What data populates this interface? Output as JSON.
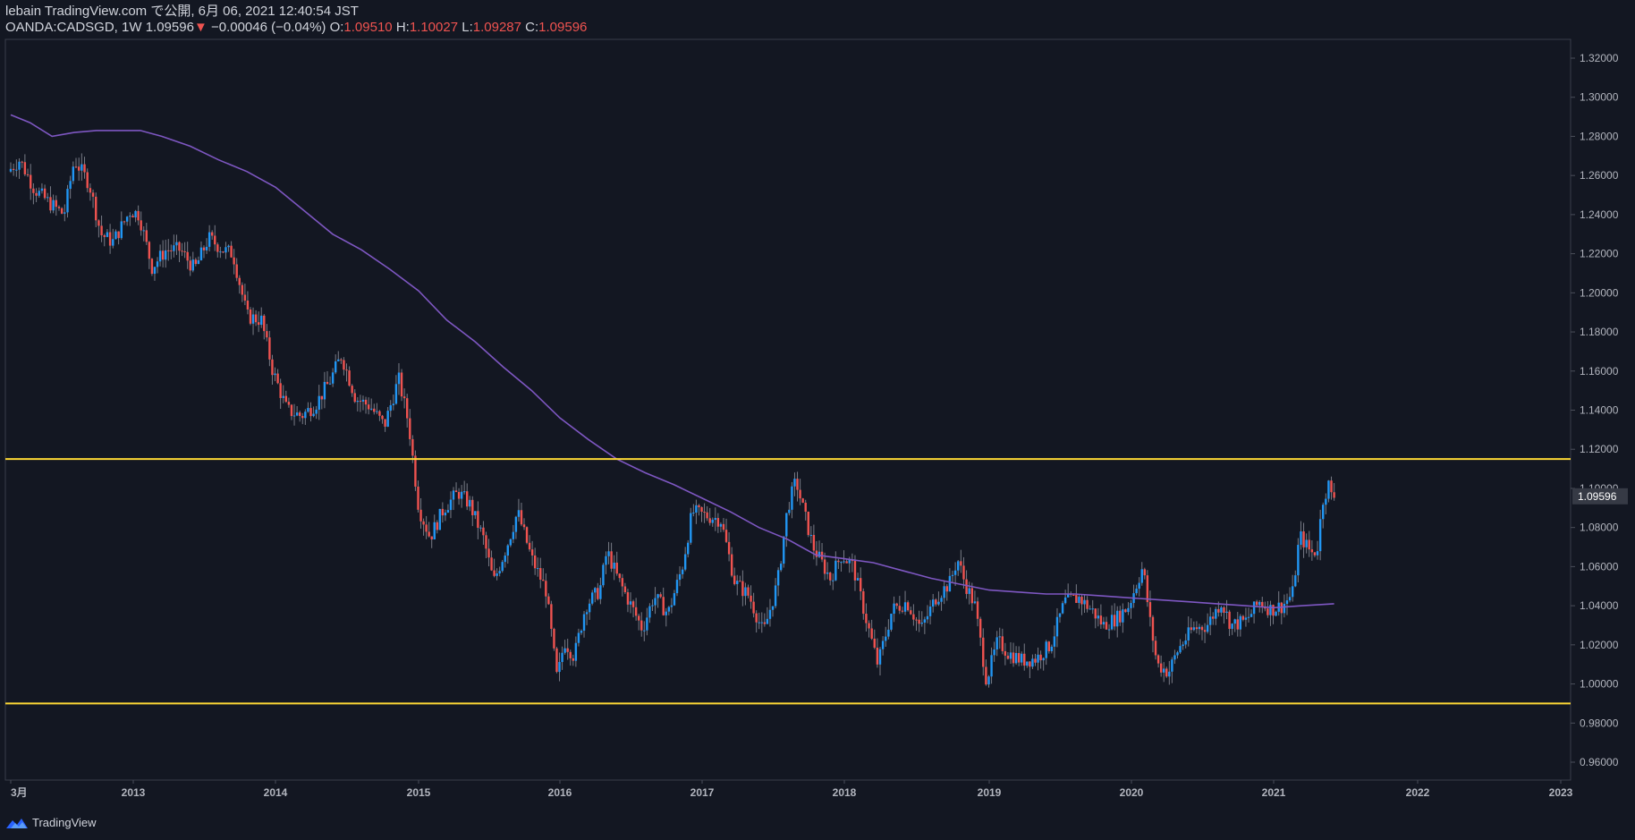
{
  "header": {
    "published_line": "lebain TradingView.com で公開, 6月 06, 2021 12:40:54 JST",
    "symbol": "OANDA:CADSGD, 1W",
    "last": "1.09596",
    "change_arrow": "▼",
    "change": "−0.00046 (−0.04%)",
    "o_label": "O:",
    "o_value": "1.09510",
    "h_label": "H:",
    "h_value": "1.10027",
    "l_label": "L:",
    "l_value": "1.09287",
    "c_label": "C:",
    "c_value": "1.09596"
  },
  "footer": {
    "brand": "TradingView"
  },
  "colors": {
    "background": "#131722",
    "up": "#2196f3",
    "down": "#ef5350",
    "ma": "#7e57c2",
    "hline": "#fdd835",
    "axis_text": "#b2b5be",
    "price_tag_bg": "#363a45"
  },
  "chart_data": {
    "type": "candlestick",
    "interval": "1W",
    "x_ticks": [
      "3月",
      "2013",
      "2014",
      "2015",
      "2016",
      "2017",
      "2018",
      "2019",
      "2020",
      "2021",
      "2022",
      "2023"
    ],
    "x_range": [
      2012.17,
      2023.0
    ],
    "ylim": [
      0.95,
      1.33
    ],
    "y_ticks": [
      "0.96000",
      "0.98000",
      "1.00000",
      "1.02000",
      "1.04000",
      "1.06000",
      "1.08000",
      "1.10000",
      "1.12000",
      "1.14000",
      "1.16000",
      "1.18000",
      "1.20000",
      "1.22000",
      "1.24000",
      "1.26000",
      "1.28000",
      "1.30000",
      "1.32000"
    ],
    "last_price_label": "1.09596",
    "horizontal_lines": [
      1.115,
      0.99
    ],
    "price_path": [
      [
        2012.17,
        1.262
      ],
      [
        2012.25,
        1.268
      ],
      [
        2012.35,
        1.253
      ],
      [
        2012.45,
        1.246
      ],
      [
        2012.55,
        1.24
      ],
      [
        2012.62,
        1.268
      ],
      [
        2012.72,
        1.256
      ],
      [
        2012.8,
        1.23
      ],
      [
        2012.88,
        1.226
      ],
      [
        2013.0,
        1.242
      ],
      [
        2013.06,
        1.24
      ],
      [
        2013.15,
        1.213
      ],
      [
        2013.25,
        1.222
      ],
      [
        2013.35,
        1.222
      ],
      [
        2013.45,
        1.212
      ],
      [
        2013.55,
        1.228
      ],
      [
        2013.65,
        1.222
      ],
      [
        2013.72,
        1.22
      ],
      [
        2013.82,
        1.188
      ],
      [
        2013.92,
        1.186
      ],
      [
        2014.0,
        1.16
      ],
      [
        2014.1,
        1.14
      ],
      [
        2014.2,
        1.137
      ],
      [
        2014.3,
        1.143
      ],
      [
        2014.4,
        1.155
      ],
      [
        2014.48,
        1.168
      ],
      [
        2014.58,
        1.146
      ],
      [
        2014.68,
        1.142
      ],
      [
        2014.78,
        1.132
      ],
      [
        2014.88,
        1.156
      ],
      [
        2014.95,
        1.133
      ],
      [
        2015.02,
        1.09
      ],
      [
        2015.1,
        1.075
      ],
      [
        2015.2,
        1.09
      ],
      [
        2015.3,
        1.098
      ],
      [
        2015.38,
        1.092
      ],
      [
        2015.48,
        1.074
      ],
      [
        2015.55,
        1.052
      ],
      [
        2015.65,
        1.072
      ],
      [
        2015.72,
        1.088
      ],
      [
        2015.82,
        1.064
      ],
      [
        2015.92,
        1.048
      ],
      [
        2016.0,
        1.002
      ],
      [
        2016.05,
        1.022
      ],
      [
        2016.12,
        1.014
      ],
      [
        2016.2,
        1.04
      ],
      [
        2016.3,
        1.048
      ],
      [
        2016.35,
        1.068
      ],
      [
        2016.42,
        1.055
      ],
      [
        2016.52,
        1.04
      ],
      [
        2016.6,
        1.028
      ],
      [
        2016.68,
        1.045
      ],
      [
        2016.78,
        1.036
      ],
      [
        2016.88,
        1.06
      ],
      [
        2016.95,
        1.088
      ],
      [
        2017.05,
        1.086
      ],
      [
        2017.15,
        1.084
      ],
      [
        2017.25,
        1.052
      ],
      [
        2017.35,
        1.045
      ],
      [
        2017.45,
        1.026
      ],
      [
        2017.55,
        1.052
      ],
      [
        2017.62,
        1.09
      ],
      [
        2017.68,
        1.104
      ],
      [
        2017.72,
        1.092
      ],
      [
        2017.8,
        1.07
      ],
      [
        2017.92,
        1.054
      ],
      [
        2018.0,
        1.066
      ],
      [
        2018.08,
        1.06
      ],
      [
        2018.18,
        1.03
      ],
      [
        2018.25,
        1.01
      ],
      [
        2018.35,
        1.038
      ],
      [
        2018.45,
        1.042
      ],
      [
        2018.55,
        1.028
      ],
      [
        2018.65,
        1.044
      ],
      [
        2018.75,
        1.052
      ],
      [
        2018.8,
        1.064
      ],
      [
        2018.85,
        1.052
      ],
      [
        2018.92,
        1.04
      ],
      [
        2019.0,
        1.002
      ],
      [
        2019.08,
        1.022
      ],
      [
        2019.15,
        1.016
      ],
      [
        2019.25,
        1.012
      ],
      [
        2019.35,
        1.013
      ],
      [
        2019.45,
        1.02
      ],
      [
        2019.55,
        1.042
      ],
      [
        2019.65,
        1.044
      ],
      [
        2019.75,
        1.037
      ],
      [
        2019.82,
        1.03
      ],
      [
        2019.92,
        1.034
      ],
      [
        2020.0,
        1.04
      ],
      [
        2020.1,
        1.06
      ],
      [
        2020.15,
        1.032
      ],
      [
        2020.2,
        1.01
      ],
      [
        2020.28,
        1.006
      ],
      [
        2020.35,
        1.018
      ],
      [
        2020.45,
        1.028
      ],
      [
        2020.55,
        1.03
      ],
      [
        2020.65,
        1.042
      ],
      [
        2020.72,
        1.03
      ],
      [
        2020.82,
        1.032
      ],
      [
        2020.92,
        1.042
      ],
      [
        2021.0,
        1.038
      ],
      [
        2021.08,
        1.04
      ],
      [
        2021.15,
        1.046
      ],
      [
        2021.2,
        1.076
      ],
      [
        2021.28,
        1.067
      ],
      [
        2021.32,
        1.068
      ],
      [
        2021.36,
        1.094
      ],
      [
        2021.4,
        1.102
      ],
      [
        2021.42,
        1.096
      ]
    ],
    "ma_path": [
      [
        2012.17,
        1.291
      ],
      [
        2012.3,
        1.287
      ],
      [
        2012.45,
        1.28
      ],
      [
        2012.6,
        1.282
      ],
      [
        2012.75,
        1.283
      ],
      [
        2012.9,
        1.283
      ],
      [
        2013.05,
        1.283
      ],
      [
        2013.2,
        1.28
      ],
      [
        2013.4,
        1.275
      ],
      [
        2013.6,
        1.268
      ],
      [
        2013.8,
        1.262
      ],
      [
        2014.0,
        1.254
      ],
      [
        2014.2,
        1.242
      ],
      [
        2014.4,
        1.23
      ],
      [
        2014.6,
        1.222
      ],
      [
        2014.8,
        1.212
      ],
      [
        2015.0,
        1.201
      ],
      [
        2015.2,
        1.186
      ],
      [
        2015.4,
        1.175
      ],
      [
        2015.6,
        1.162
      ],
      [
        2015.8,
        1.15
      ],
      [
        2016.0,
        1.136
      ],
      [
        2016.2,
        1.125
      ],
      [
        2016.4,
        1.115
      ],
      [
        2016.6,
        1.108
      ],
      [
        2016.8,
        1.102
      ],
      [
        2017.0,
        1.095
      ],
      [
        2017.2,
        1.088
      ],
      [
        2017.4,
        1.08
      ],
      [
        2017.6,
        1.074
      ],
      [
        2017.8,
        1.066
      ],
      [
        2018.0,
        1.064
      ],
      [
        2018.2,
        1.062
      ],
      [
        2018.4,
        1.058
      ],
      [
        2018.6,
        1.054
      ],
      [
        2018.8,
        1.051
      ],
      [
        2019.0,
        1.048
      ],
      [
        2019.2,
        1.047
      ],
      [
        2019.4,
        1.046
      ],
      [
        2019.6,
        1.046
      ],
      [
        2019.8,
        1.045
      ],
      [
        2020.0,
        1.044
      ],
      [
        2020.2,
        1.043
      ],
      [
        2020.4,
        1.042
      ],
      [
        2020.6,
        1.041
      ],
      [
        2020.8,
        1.04
      ],
      [
        2021.0,
        1.039
      ],
      [
        2021.2,
        1.04
      ],
      [
        2021.42,
        1.041
      ]
    ]
  }
}
